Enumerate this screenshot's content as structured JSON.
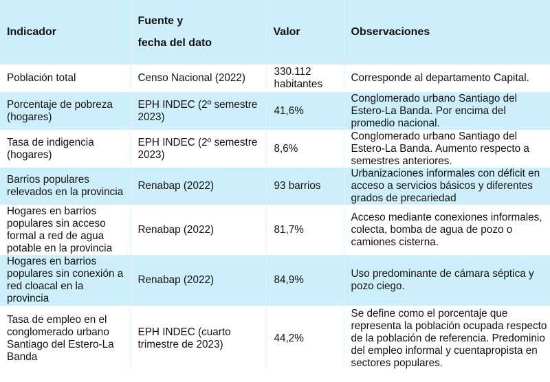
{
  "headers": [
    "Indicador",
    "Fuente y",
    "fecha del dato",
    "Valor",
    "Observaciones"
  ],
  "colors": {
    "header_bg": "#cdeefb",
    "alt_row_bg": "#cdeefb"
  },
  "rows": [
    {
      "indicador": "Población total",
      "fuente": "Censo Nacional (2022)",
      "valor": "330.112 habitantes",
      "obs": "Corresponde al departamento Capital."
    },
    {
      "indicador": "Porcentaje de pobreza (hogares)",
      "fuente": "EPH INDEC (2º semestre 2023)",
      "valor": "41,6%",
      "obs": "Conglomerado urbano Santiago del Estero-La Banda. Por encima del promedio nacional."
    },
    {
      "indicador": "Tasa de indigencia (hogares)",
      "fuente": "EPH INDEC (2º semestre 2023)",
      "valor": "8,6%",
      "obs": "Conglomerado urbano Santiago del Estero-La Banda. Aumento respecto a semestres anteriores."
    },
    {
      "indicador": "Barrios populares relevados en la provincia",
      "fuente": "Renabap (2022)",
      "valor": "93 barrios",
      "obs": "Urbanizaciones informales con déficit en acceso a servicios básicos y diferentes grados de precariedad"
    },
    {
      "indicador": "Hogares en barrios populares sin acceso formal a red de agua potable en la provincia",
      "fuente": "Renabap (2022)",
      "valor": "81,7%",
      "obs": "Acceso mediante conexiones informales, colecta, bomba de agua de pozo o camiones cisterna."
    },
    {
      "indicador": "Hogares en barrios populares sin conexión a red cloacal en la provincia",
      "fuente": "Renabap (2022)",
      "valor": "84,9%",
      "obs": "Uso predominante de cámara séptica y pozo ciego."
    },
    {
      "indicador": "Tasa de empleo en el conglomerado urbano Santiago del Estero-La Banda",
      "fuente": "EPH INDEC (cuarto trimestre de 2023)",
      "valor": "44,2%",
      "obs": "Se define como el porcentaje que representa la población ocupada respecto de la población de referencia. Predominio del empleo informal y cuentapropista en sectores populares."
    }
  ]
}
